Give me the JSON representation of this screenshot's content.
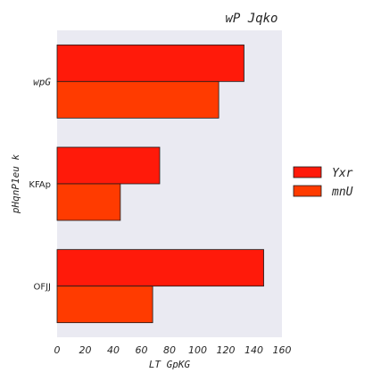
{
  "chart_data": {
    "type": "bar",
    "orientation": "horizontal",
    "title": "wP Jqko",
    "xlabel": "LT GpKG",
    "ylabel": "pHqnP1eu k",
    "categories": [
      "wpG",
      "KFAp",
      "OFJJ"
    ],
    "series": [
      {
        "name": "Yxr",
        "color": "#ff1a0a",
        "values": [
          133,
          73,
          147
        ]
      },
      {
        "name": "mnU",
        "color": "#ff3b00",
        "values": [
          115,
          45,
          68
        ]
      }
    ],
    "xlim": [
      0,
      160
    ],
    "xticks": [
      0,
      20,
      40,
      60,
      80,
      100,
      120,
      140,
      160
    ],
    "background": "#eaeaf2",
    "grid": false,
    "legend_position": "right"
  }
}
